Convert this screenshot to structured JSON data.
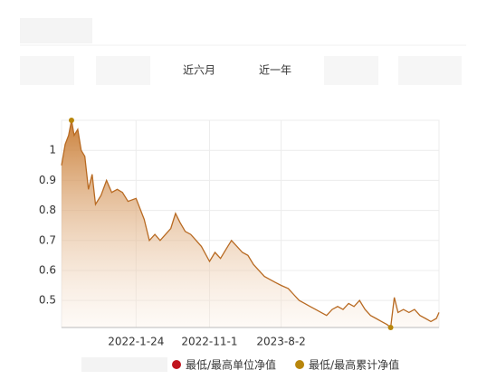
{
  "chart_data": {
    "type": "area",
    "tabs": [
      "近六月",
      "近一年"
    ],
    "x": [
      "2021-04-14",
      "2021-04-28",
      "2021-05-11",
      "2021-05-22",
      "2021-06-01",
      "2021-06-15",
      "2021-06-28",
      "2021-07-12",
      "2021-07-26",
      "2021-08-09",
      "2021-08-22",
      "2021-09-12",
      "2021-10-03",
      "2021-10-23",
      "2021-11-13",
      "2021-12-03",
      "2021-12-24",
      "2022-01-24",
      "2022-02-24",
      "2022-03-16",
      "2022-04-06",
      "2022-04-26",
      "2022-05-17",
      "2022-06-06",
      "2022-06-24",
      "2022-07-11",
      "2022-07-31",
      "2022-08-21",
      "2022-09-11",
      "2022-10-01",
      "2022-11-01",
      "2022-11-22",
      "2022-12-13",
      "2023-01-03",
      "2023-01-24",
      "2023-02-14",
      "2023-03-07",
      "2023-03-28",
      "2023-04-18",
      "2023-05-09",
      "2023-05-30",
      "2023-06-20",
      "2023-07-11",
      "2023-08-02",
      "2023-08-29",
      "2023-09-19",
      "2023-10-10",
      "2023-10-31",
      "2023-11-21",
      "2023-12-12",
      "2024-01-02",
      "2024-01-23",
      "2024-02-13",
      "2024-03-05",
      "2024-03-26",
      "2024-04-16",
      "2024-05-07",
      "2024-05-28",
      "2024-06-18",
      "2024-07-09",
      "2024-07-30",
      "2024-08-20",
      "2024-09-10",
      "2024-09-24",
      "2024-10-08",
      "2024-10-22",
      "2024-11-12",
      "2024-12-03",
      "2024-12-24",
      "2025-01-14",
      "2025-02-04",
      "2025-02-25",
      "2025-03-18",
      "2025-03-28"
    ],
    "values": [
      0.95,
      1.02,
      1.05,
      1.1,
      1.05,
      1.07,
      1.0,
      0.98,
      0.87,
      0.92,
      0.82,
      0.85,
      0.9,
      0.86,
      0.87,
      0.86,
      0.83,
      0.84,
      0.77,
      0.7,
      0.72,
      0.7,
      0.72,
      0.74,
      0.79,
      0.76,
      0.73,
      0.72,
      0.7,
      0.68,
      0.63,
      0.66,
      0.64,
      0.67,
      0.7,
      0.68,
      0.66,
      0.65,
      0.62,
      0.6,
      0.58,
      0.57,
      0.56,
      0.55,
      0.54,
      0.52,
      0.5,
      0.49,
      0.48,
      0.47,
      0.46,
      0.45,
      0.47,
      0.48,
      0.47,
      0.49,
      0.48,
      0.5,
      0.47,
      0.45,
      0.44,
      0.43,
      0.42,
      0.41,
      0.51,
      0.46,
      0.47,
      0.46,
      0.47,
      0.45,
      0.44,
      0.43,
      0.44,
      0.46
    ],
    "color": "#b86a22",
    "xlim": [
      "2021-04-14",
      "2025-03-28"
    ],
    "xticks": [
      {
        "value": "2022-01-24",
        "label": "2022-1-24"
      },
      {
        "value": "2022-11-01",
        "label": "2022-11-1"
      },
      {
        "value": "2023-08-02",
        "label": "2023-8-2"
      }
    ],
    "ylim": [
      0.41,
      1.1
    ],
    "yticks": [
      0.5,
      0.6,
      0.7,
      0.8,
      0.9,
      1
    ],
    "grid": true,
    "markers": [
      {
        "label": "最低/最高单位净值",
        "color": "#c0141e"
      },
      {
        "label": "最低/最高累计净值",
        "color": "#b8860b"
      }
    ]
  }
}
